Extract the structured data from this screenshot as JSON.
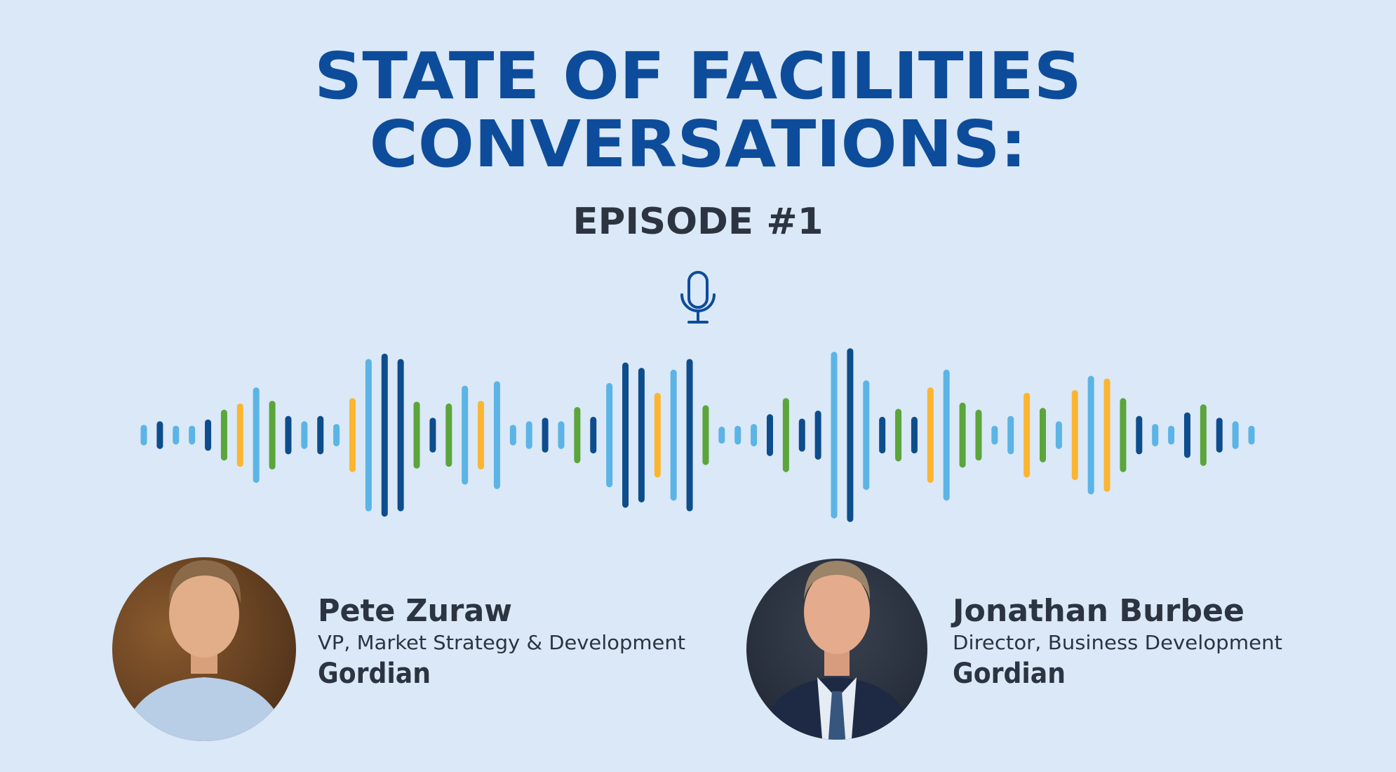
{
  "header": {
    "title_lines": [
      "STATE OF FACILITIES",
      "CONVERSATIONS:"
    ],
    "episode": "EPISODE #1"
  },
  "speakers": [
    {
      "name": "Pete Zuraw",
      "role": "VP, Market Strategy & Development",
      "company": "Gordian"
    },
    {
      "name": "Jonathan Burbee",
      "role": "Director, Business Development",
      "company": "Gordian"
    }
  ]
}
